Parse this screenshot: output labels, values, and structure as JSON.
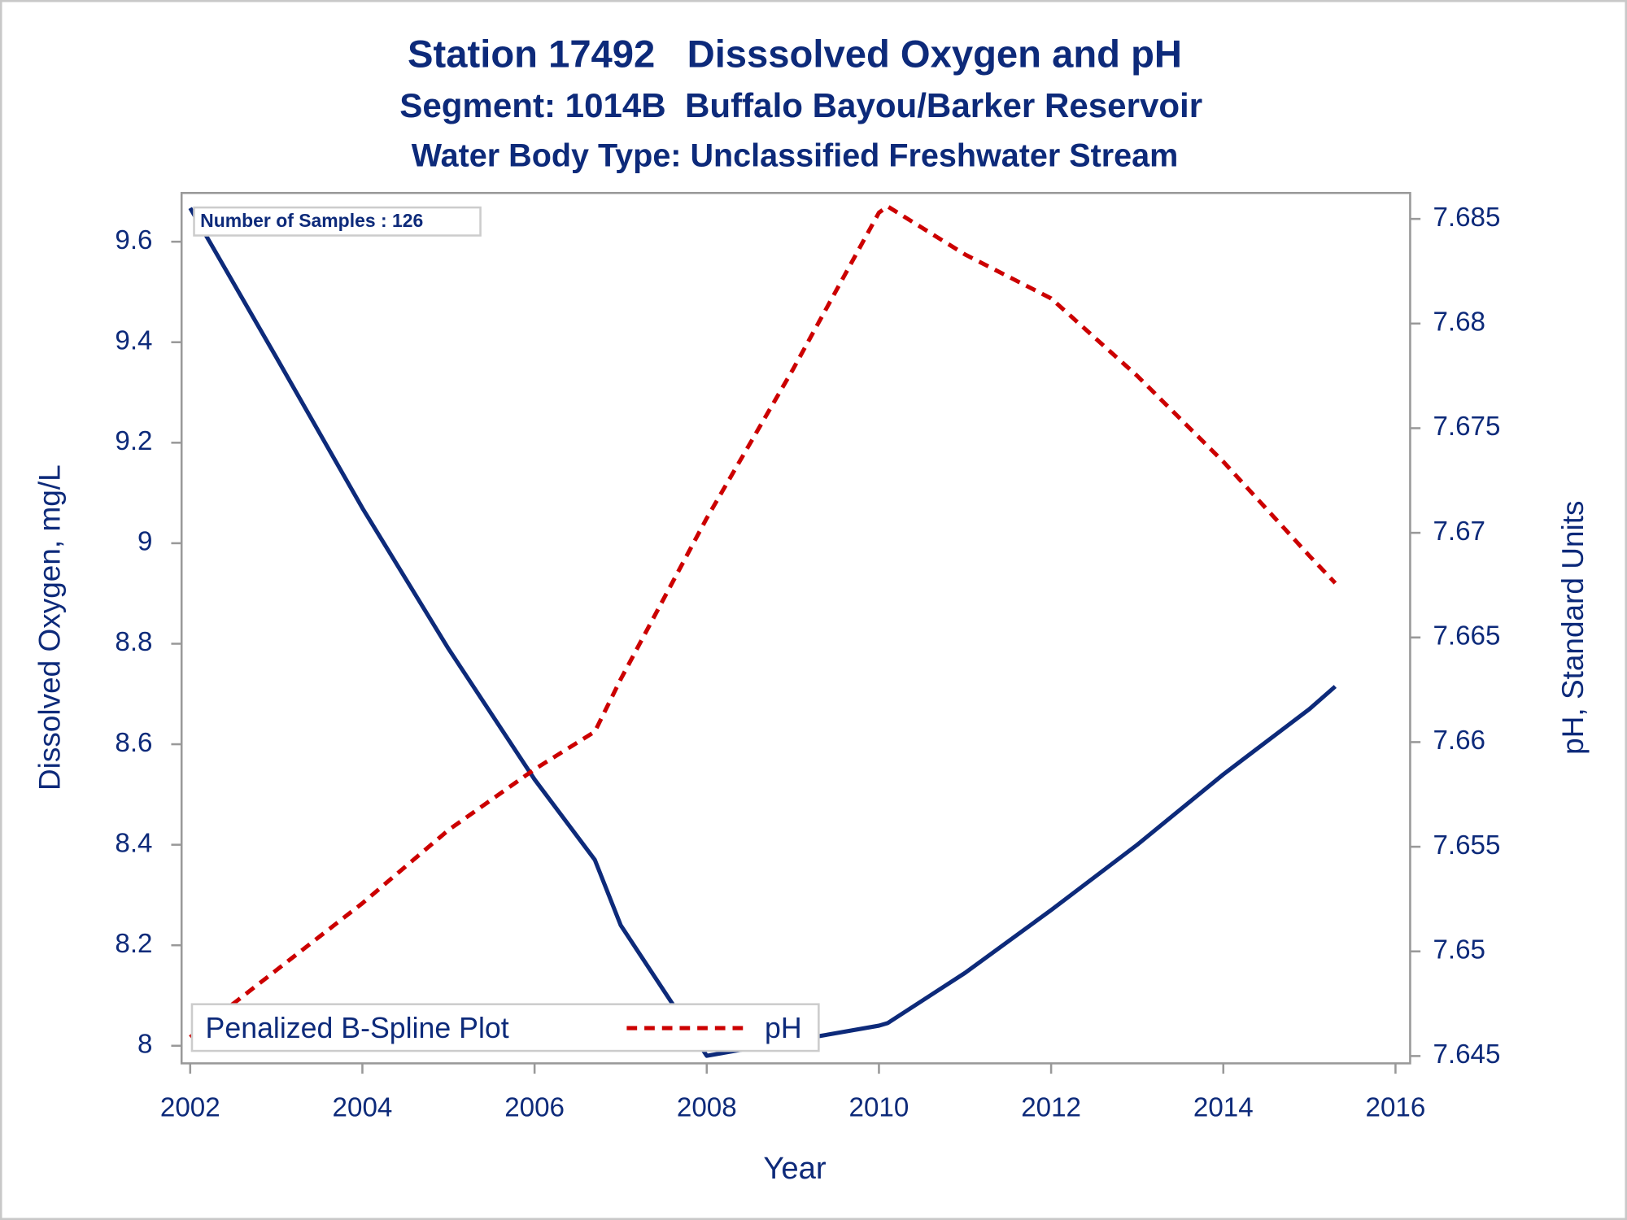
{
  "chart_data": {
    "type": "line",
    "title": "Station 17492   Disssolved Oxygen and pH",
    "subtitle": "Segment: 1014B  Buffalo Bayou/Barker Reservoir",
    "subtitle2": "Water Body Type: Unclassified Freshwater Stream",
    "annotation": "Number of Samples : 126",
    "xlabel": "Year",
    "ylabel": "Dissolved Oxygen, mg/L",
    "y2label": "pH, Standard Units",
    "legend_title": "Penalized B-Spline Plot",
    "x": [
      2002,
      2003,
      2004,
      2005,
      2006,
      2006.7,
      2007,
      2008,
      2009,
      2010,
      2010.1,
      2011,
      2012,
      2013,
      2014,
      2015,
      2015.3
    ],
    "series": [
      {
        "color": "#0d2a7a",
        "dash": false,
        "values": [
          9.667,
          9.37,
          9.07,
          8.79,
          8.53,
          8.37,
          8.24,
          7.98,
          8.01,
          8.04,
          8.045,
          8.145,
          8.27,
          8.4,
          8.54,
          8.67,
          8.715
        ]
      },
      {
        "name": "pH",
        "color": "#cc0000",
        "dash": true,
        "axis": "y2",
        "values": [
          7.6459,
          7.6491,
          7.6523,
          7.6558,
          7.6587,
          7.6605,
          7.663,
          7.6707,
          7.6778,
          7.6853,
          7.6856,
          7.6833,
          7.6812,
          7.6775,
          7.6734,
          7.6689,
          7.6676
        ]
      }
    ],
    "xlim": [
      2001.9,
      2016.17
    ],
    "xticks": [
      2002,
      2004,
      2006,
      2008,
      2010,
      2012,
      2014,
      2016
    ],
    "ylim": [
      7.965,
      9.697
    ],
    "yticks": [
      8,
      8.2,
      8.4,
      8.6,
      8.8,
      9,
      9.2,
      9.4,
      9.6
    ],
    "y2lim": [
      7.64465,
      7.68624
    ],
    "y2ticks": [
      7.645,
      7.65,
      7.655,
      7.66,
      7.665,
      7.67,
      7.675,
      7.68,
      7.685
    ],
    "grid": false,
    "legend": "lower left"
  }
}
